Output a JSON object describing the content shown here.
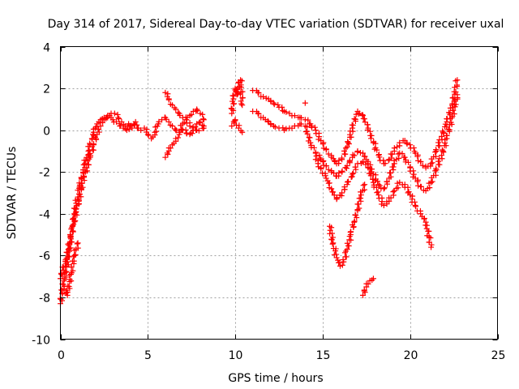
{
  "chart_data": {
    "type": "scatter",
    "title": "Day 314 of 2017, Sidereal Day-to-day VTEC variation (SDTVAR) for receiver uxal",
    "xlabel": "GPS time / hours",
    "ylabel": "SDTVAR / TECUs",
    "xlim": [
      0,
      25
    ],
    "ylim": [
      -10,
      4
    ],
    "xticks": [
      0,
      5,
      10,
      15,
      20,
      25
    ],
    "yticks": [
      -10,
      -8,
      -6,
      -4,
      -2,
      0,
      2,
      4
    ],
    "xtick_labels": [
      "0",
      "5",
      "10",
      "15",
      "20",
      "25"
    ],
    "ytick_labels": [
      "-10",
      "-8",
      "-6",
      "-4",
      "-2",
      "0",
      "2",
      "4"
    ],
    "grid": true,
    "marker": "plus",
    "color": "#ff0000",
    "series": [
      {
        "values_x": [
          0.0,
          0.1,
          0.2,
          0.3,
          0.4,
          0.5,
          0.6,
          0.7,
          0.8,
          0.9,
          1.0,
          1.1,
          1.2,
          1.3,
          1.4,
          1.5,
          1.6,
          1.7,
          1.8,
          1.9,
          2.0,
          2.1,
          2.2,
          2.3,
          2.4,
          2.5,
          2.6,
          2.7,
          2.8,
          2.9,
          3.0,
          3.2,
          3.4,
          3.6,
          3.8,
          4.0,
          4.2,
          4.4,
          4.6
        ],
        "values_y": [
          -8.3,
          -7.8,
          -7.2,
          -6.8,
          -6.3,
          -5.8,
          -5.2,
          -4.6,
          -4.0,
          -3.5,
          -3.2,
          -2.7,
          -2.3,
          -1.9,
          -1.6,
          -1.3,
          -1.0,
          -0.7,
          -0.4,
          -0.1,
          0.1,
          0.3,
          0.4,
          0.5,
          0.55,
          0.6,
          0.55,
          0.6,
          0.7,
          0.6,
          0.5,
          0.4,
          0.2,
          0.1,
          0.0,
          0.2,
          0.3,
          0.1,
          0.0
        ]
      },
      {
        "values_x": [
          0.0,
          0.15,
          0.3,
          0.45,
          0.6,
          0.75,
          0.9,
          1.05,
          1.2,
          1.35,
          1.5,
          1.7,
          1.9,
          2.1,
          2.3,
          2.5,
          2.7,
          2.9,
          3.1,
          3.3,
          3.5,
          3.7,
          3.9,
          4.1,
          4.3
        ],
        "values_y": [
          -7.1,
          -6.7,
          -6.2,
          -5.7,
          -5.1,
          -4.5,
          -3.9,
          -3.4,
          -2.8,
          -2.2,
          -1.8,
          -1.3,
          -0.7,
          -0.2,
          0.2,
          0.5,
          0.7,
          0.8,
          0.8,
          0.6,
          0.4,
          0.2,
          0.3,
          0.1,
          0.4
        ]
      },
      {
        "values_x": [
          0.2,
          0.4,
          0.6,
          0.8,
          1.0
        ],
        "values_y": [
          -7.6,
          -7.9,
          -6.9,
          -6.0,
          -5.4
        ]
      },
      {
        "values_x": [
          4.8,
          5.0,
          5.2,
          5.4,
          5.6,
          5.8,
          6.0,
          6.2,
          6.4,
          6.6,
          6.8,
          7.0,
          7.2,
          7.4,
          7.6,
          7.8,
          8.0,
          8.2
        ],
        "values_y": [
          0.1,
          -0.2,
          -0.4,
          -0.1,
          0.3,
          0.5,
          0.6,
          0.4,
          0.2,
          0.0,
          -0.1,
          0.3,
          0.5,
          0.2,
          0.0,
          0.3,
          0.4,
          0.2
        ]
      },
      {
        "values_x": [
          6.0,
          6.2,
          6.4,
          6.6,
          6.8,
          7.0,
          7.2,
          7.4,
          7.6,
          7.8,
          8.0,
          8.2
        ],
        "values_y": [
          1.8,
          1.5,
          1.2,
          1.0,
          0.8,
          0.6,
          0.5,
          0.7,
          0.9,
          1.0,
          0.8,
          0.5
        ]
      },
      {
        "values_x": [
          6.0,
          6.2,
          6.4,
          6.6,
          6.8,
          7.0,
          7.4,
          7.8,
          8.2
        ],
        "values_y": [
          -1.3,
          -1.0,
          -0.7,
          -0.4,
          -0.2,
          0.0,
          -0.2,
          0.0,
          0.1
        ]
      },
      {
        "values_x": [
          9.8,
          9.9,
          10.0,
          10.1,
          10.2,
          10.3,
          10.4
        ],
        "values_y": [
          0.8,
          1.5,
          2.0,
          1.7,
          2.3,
          2.4,
          1.2
        ]
      },
      {
        "values_x": [
          9.8,
          10.0,
          10.2,
          10.4
        ],
        "values_y": [
          0.2,
          0.5,
          0.1,
          -0.1
        ]
      },
      {
        "values_x": [
          11.0,
          11.3,
          11.6,
          11.9,
          12.2,
          12.5,
          12.8,
          13.1,
          13.4,
          13.7,
          14.0,
          14.3,
          14.6,
          14.9,
          15.2,
          15.5,
          15.8,
          16.1,
          16.4,
          16.7,
          17.0,
          17.3,
          17.6,
          17.9,
          18.2,
          18.5,
          18.8,
          19.1,
          19.4,
          19.7,
          20.0,
          20.3,
          20.6,
          20.9,
          21.2,
          21.5,
          21.8,
          22.1,
          22.4,
          22.7
        ],
        "values_y": [
          1.9,
          1.8,
          1.6,
          1.5,
          1.3,
          1.1,
          0.9,
          0.8,
          0.7,
          0.6,
          0.5,
          0.3,
          0.0,
          -0.5,
          -0.9,
          -1.3,
          -1.6,
          -1.4,
          -0.8,
          0.1,
          0.9,
          0.7,
          0.1,
          -0.6,
          -1.2,
          -1.6,
          -1.4,
          -1.0,
          -0.6,
          -0.5,
          -0.7,
          -1.1,
          -1.5,
          -1.8,
          -1.6,
          -1.0,
          -0.3,
          0.4,
          1.2,
          2.4
        ]
      },
      {
        "values_x": [
          11.0,
          11.3,
          11.6,
          11.9,
          12.2,
          12.5,
          12.8,
          13.1,
          13.4,
          13.7,
          14.0,
          14.3,
          14.6,
          14.9,
          15.2,
          15.5,
          15.8,
          16.1,
          16.4,
          16.7,
          17.0,
          17.3,
          17.6,
          17.9,
          18.2,
          18.5,
          18.8,
          19.1,
          19.4,
          19.7,
          20.0,
          20.3,
          20.6,
          20.9,
          21.2,
          21.5,
          21.8,
          22.1,
          22.4,
          22.7
        ],
        "values_y": [
          0.9,
          0.8,
          0.6,
          0.4,
          0.2,
          0.1,
          0.0,
          0.1,
          0.2,
          0.3,
          0.2,
          -0.6,
          -1.1,
          -1.4,
          -1.7,
          -2.0,
          -2.2,
          -2.0,
          -1.7,
          -1.3,
          -1.0,
          -1.1,
          -1.5,
          -2.1,
          -2.6,
          -2.8,
          -2.3,
          -1.6,
          -1.1,
          -1.3,
          -1.8,
          -2.3,
          -2.7,
          -2.9,
          -2.5,
          -1.9,
          -1.2,
          -0.4,
          0.6,
          1.7
        ]
      },
      {
        "values_x": [
          14.6,
          14.9,
          15.2,
          15.5,
          15.8,
          16.1,
          16.4,
          16.7,
          17.0,
          17.3,
          17.6,
          17.9,
          18.2,
          18.5,
          18.8,
          19.1,
          19.4,
          19.7,
          20.0,
          20.3,
          20.6,
          20.9,
          21.2
        ],
        "values_y": [
          -1.4,
          -1.8,
          -2.3,
          -2.8,
          -3.3,
          -3.0,
          -2.6,
          -2.1,
          -1.6,
          -1.5,
          -1.8,
          -2.5,
          -3.1,
          -3.6,
          -3.4,
          -2.9,
          -2.5,
          -2.6,
          -3.1,
          -3.6,
          -4.0,
          -4.4,
          -5.6
        ]
      },
      {
        "values_x": [
          15.4,
          15.6,
          15.8,
          16.0,
          16.2,
          16.4,
          16.6,
          16.8,
          17.0,
          17.2,
          17.4
        ],
        "values_y": [
          -4.6,
          -5.4,
          -6.1,
          -6.5,
          -6.3,
          -5.7,
          -5.0,
          -4.4,
          -3.8,
          -3.1,
          -2.6
        ]
      },
      {
        "values_x": [
          17.3,
          17.5,
          17.7,
          17.9
        ],
        "values_y": [
          -7.9,
          -7.5,
          -7.2,
          -7.1
        ]
      },
      {
        "values_x": [
          14.0
        ],
        "values_y": [
          1.3
        ]
      }
    ]
  }
}
